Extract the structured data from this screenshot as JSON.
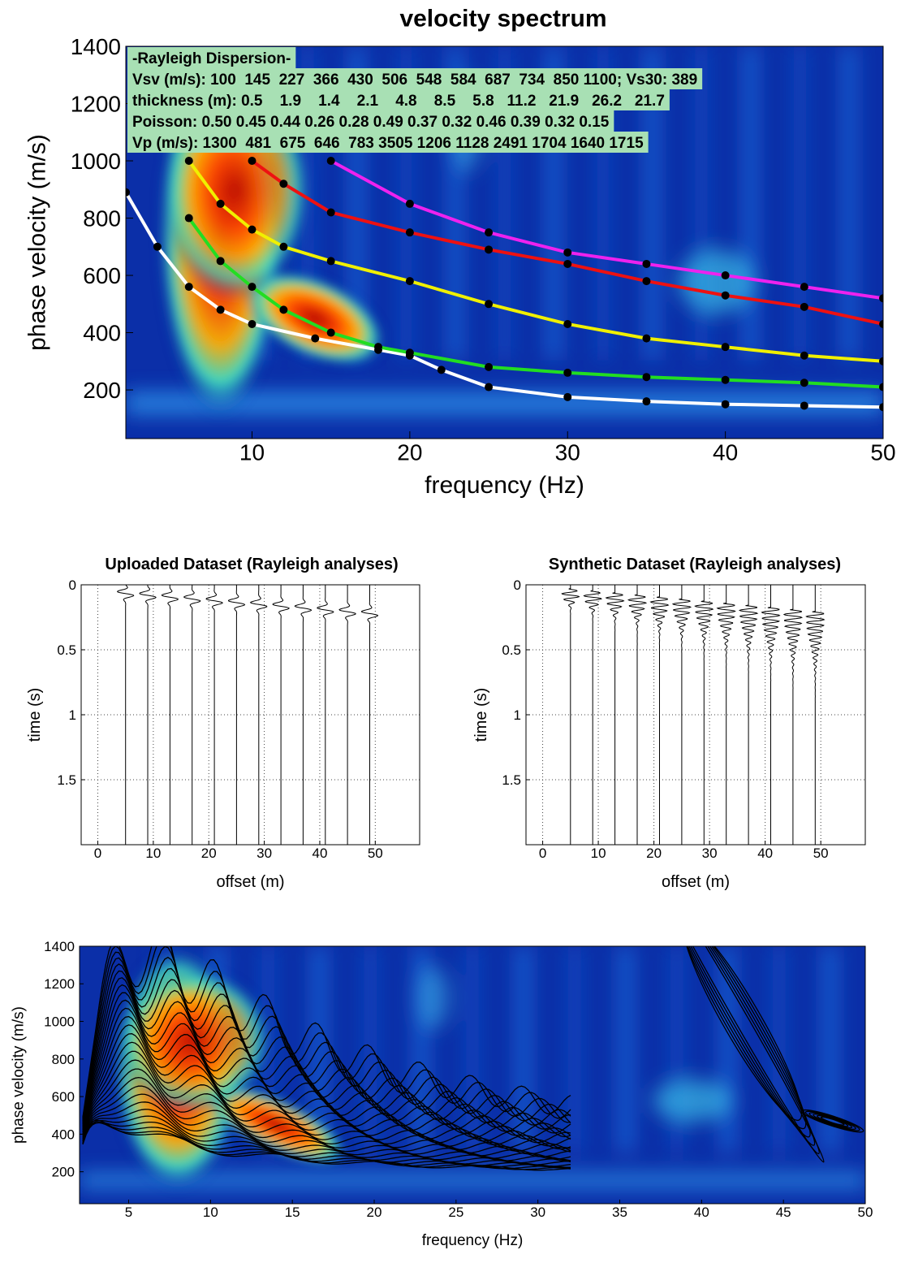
{
  "chart_data": [
    {
      "type": "spectrum",
      "title": "velocity spectrum",
      "xlabel": "frequency (Hz)",
      "ylabel": "phase velocity (m/s)",
      "xlim": [
        2,
        50
      ],
      "ylim": [
        30,
        1400
      ],
      "xticks": [
        10,
        20,
        30,
        40,
        50
      ],
      "yticks": [
        200,
        400,
        600,
        800,
        1000,
        1200,
        1400
      ],
      "annotation": [
        "-Rayleigh Dispersion-",
        "Vsv (m/s): 100  145  227  366  430  506  548  584  687  734  850 1100; Vs30: 389",
        "thickness (m): 0.5    1.9    1.4    2.1    4.8    8.5    5.8   11.2   21.9   26.2   21.7",
        "Poisson: 0.50 0.45 0.44 0.26 0.28 0.49 0.37 0.32 0.46 0.39 0.32 0.15",
        "Vp (m/s): 1300  481  675  646  783 3505 1206 1128 2491 1704 1640 1715"
      ],
      "series": [
        {
          "color": "#ffffff",
          "x": [
            2,
            4,
            6,
            8,
            10,
            14,
            18,
            20,
            22,
            25,
            30,
            35,
            40,
            45,
            50
          ],
          "values": [
            890,
            700,
            560,
            480,
            430,
            380,
            340,
            320,
            270,
            210,
            175,
            160,
            150,
            145,
            140
          ]
        },
        {
          "color": "#22dd22",
          "x": [
            6,
            8,
            10,
            12,
            15,
            18,
            20,
            25,
            30,
            35,
            40,
            45,
            50
          ],
          "values": [
            800,
            650,
            560,
            480,
            400,
            350,
            330,
            280,
            260,
            245,
            235,
            225,
            210
          ]
        },
        {
          "color": "#f0f000",
          "x": [
            6,
            8,
            10,
            12,
            15,
            20,
            25,
            30,
            35,
            40,
            45,
            50
          ],
          "values": [
            1000,
            850,
            760,
            700,
            650,
            580,
            500,
            430,
            380,
            350,
            320,
            300
          ]
        },
        {
          "color": "#ee1111",
          "x": [
            10,
            12,
            15,
            20,
            25,
            30,
            35,
            40,
            45,
            50
          ],
          "values": [
            1000,
            920,
            820,
            750,
            690,
            640,
            580,
            530,
            490,
            430
          ]
        },
        {
          "color": "#ee22ee",
          "x": [
            15,
            20,
            25,
            30,
            35,
            40,
            45,
            50
          ],
          "values": [
            1000,
            850,
            750,
            680,
            640,
            600,
            560,
            520
          ]
        }
      ]
    },
    {
      "type": "seismogram",
      "title": "Uploaded Dataset (Rayleigh analyses)",
      "xlabel": "offset (m)",
      "ylabel": "time (s)",
      "xlim": [
        -3,
        58
      ],
      "ylim": [
        0,
        2
      ],
      "y_reversed": true,
      "xticks": [
        0,
        10,
        20,
        30,
        40,
        50
      ],
      "yticks": [
        0,
        0.5,
        1,
        1.5
      ],
      "grid": true,
      "offsets": [
        5,
        9,
        13,
        17,
        21,
        25,
        29,
        33,
        37,
        41,
        45,
        49
      ],
      "synthetic": false
    },
    {
      "type": "seismogram",
      "title": "Synthetic Dataset (Rayleigh analyses)",
      "xlabel": "offset (m)",
      "ylabel": "time (s)",
      "xlim": [
        -3,
        58
      ],
      "ylim": [
        0,
        2
      ],
      "y_reversed": true,
      "xticks": [
        0,
        10,
        20,
        30,
        40,
        50
      ],
      "yticks": [
        0,
        0.5,
        1,
        1.5
      ],
      "grid": true,
      "offsets": [
        5,
        9,
        13,
        17,
        21,
        25,
        29,
        33,
        37,
        41,
        45,
        49
      ],
      "synthetic": true
    },
    {
      "type": "contour",
      "xlabel": "frequency (Hz)",
      "ylabel": "phase velocity (m/s)",
      "xlim": [
        2,
        50
      ],
      "ylim": [
        30,
        1400
      ],
      "xticks": [
        5,
        10,
        15,
        20,
        25,
        30,
        35,
        40,
        45,
        50
      ],
      "yticks": [
        200,
        400,
        600,
        800,
        1000,
        1200,
        1400
      ]
    }
  ]
}
